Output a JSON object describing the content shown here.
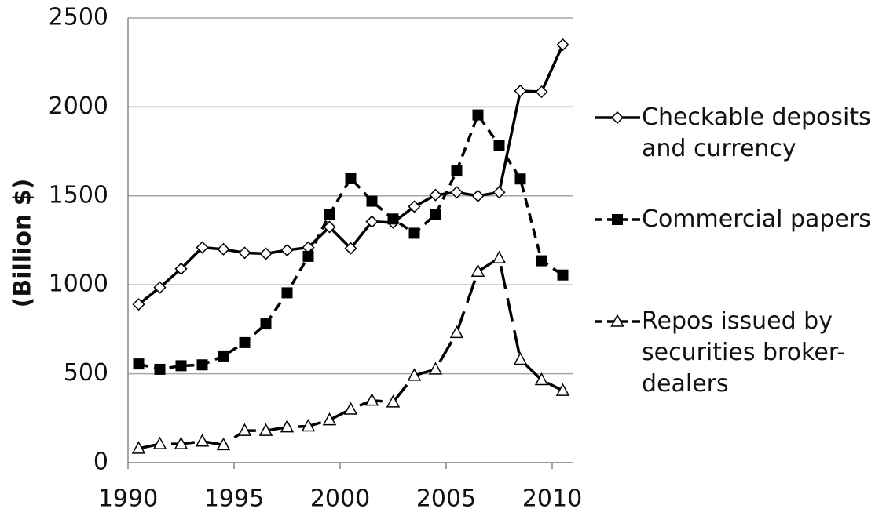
{
  "chart_data": {
    "type": "line",
    "y_label": "(Billion $)",
    "x": [
      1990.5,
      1991.5,
      1992.5,
      1993.5,
      1994.5,
      1995.5,
      1996.5,
      1997.5,
      1998.5,
      1999.5,
      2000.5,
      2001.5,
      2002.5,
      2003.5,
      2004.5,
      2005.5,
      2006.5,
      2007.5,
      2008.5,
      2009.5,
      2010.5
    ],
    "xlim": [
      1990,
      2011
    ],
    "xticks": [
      1990,
      1995,
      2000,
      2005,
      2010
    ],
    "ylim": [
      0,
      2500
    ],
    "yticks": [
      0,
      500,
      1000,
      1500,
      2000,
      2500
    ],
    "grid": true,
    "legend": "right",
    "series": [
      {
        "name": "Checkable deposits and currency",
        "color": "#000000",
        "marker": "diamond",
        "line_style": "solid",
        "values": [
          890,
          985,
          1090,
          1210,
          1200,
          1180,
          1175,
          1195,
          1210,
          1325,
          1205,
          1355,
          1350,
          1440,
          1505,
          1520,
          1500,
          1520,
          2090,
          2085,
          2350
        ]
      },
      {
        "name": "Commercial papers",
        "color": "#000000",
        "marker": "square",
        "line_style": "dashed",
        "values": [
          555,
          525,
          545,
          550,
          600,
          675,
          780,
          955,
          1160,
          1395,
          1600,
          1470,
          1370,
          1290,
          1395,
          1640,
          1955,
          1785,
          1595,
          1135,
          1055
        ]
      },
      {
        "name": "Repos issued by securities broker-dealers",
        "color": "#000000",
        "marker": "triangle",
        "line_style": "long-dashed",
        "values": [
          80,
          105,
          105,
          120,
          100,
          180,
          180,
          200,
          205,
          240,
          300,
          350,
          340,
          490,
          525,
          730,
          1075,
          1150,
          580,
          465,
          405
        ]
      }
    ]
  }
}
